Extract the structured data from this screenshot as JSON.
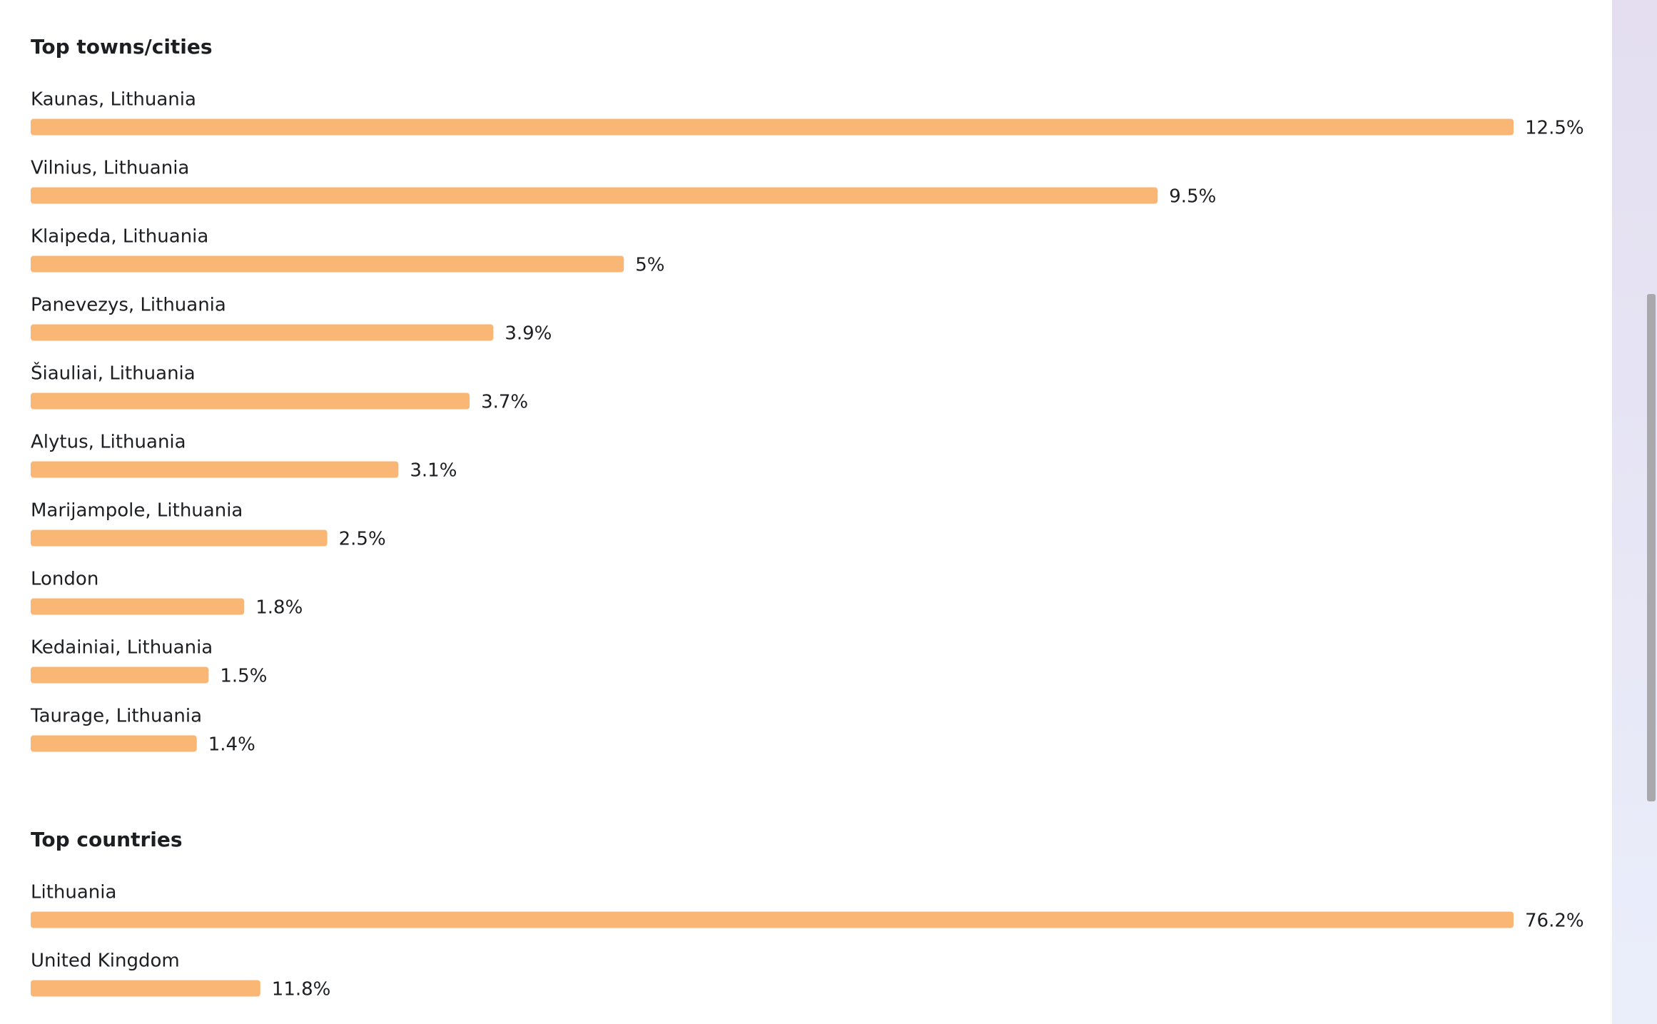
{
  "chart_data": [
    {
      "type": "bar",
      "title": "Top towns/cities",
      "color": "#f9b674",
      "categories": [
        "Kaunas, Lithuania",
        "Vilnius, Lithuania",
        "Klaipeda, Lithuania",
        "Panevezys, Lithuania",
        "Šiauliai, Lithuania",
        "Alytus, Lithuania",
        "Marijampole, Lithuania",
        "London",
        "Kedainiai, Lithuania",
        "Taurage, Lithuania"
      ],
      "values": [
        12.5,
        9.5,
        5,
        3.9,
        3.7,
        3.1,
        2.5,
        1.8,
        1.5,
        1.4
      ],
      "value_labels": [
        "12.5%",
        "9.5%",
        "5%",
        "3.9%",
        "3.7%",
        "3.1%",
        "2.5%",
        "1.8%",
        "1.5%",
        "1.4%"
      ]
    },
    {
      "type": "bar",
      "title": "Top countries",
      "color": "#f9b674",
      "categories": [
        "Lithuania",
        "United Kingdom"
      ],
      "values": [
        76.2,
        11.8
      ],
      "value_labels": [
        "76.2%",
        "11.8%"
      ]
    }
  ]
}
